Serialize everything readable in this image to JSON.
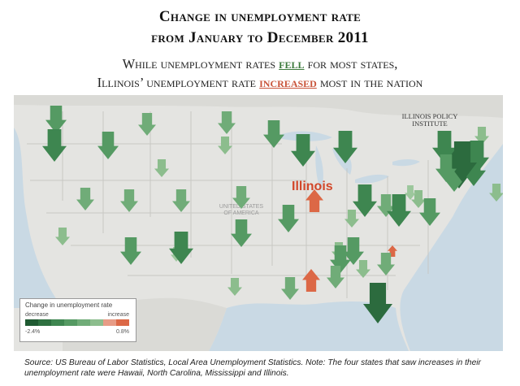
{
  "title": {
    "line1": "Change in unemployment rate",
    "line2": "from January to December 2011"
  },
  "subtitle": {
    "line1_pre": "While unemployment rates ",
    "line1_emph": "fell",
    "line1_post": " for most states,",
    "line2_pre": "Illinois’ unemployment rate ",
    "line2_emph": "increased",
    "line2_post": " most in the nation"
  },
  "map": {
    "highlight_label": "Illinois",
    "country_label_line1": "UNITED STATES",
    "country_label_line2": "OF AMERICA",
    "logo_line1": "ILLINOIS POLICY",
    "logo_line2": "INSTITUTE",
    "colors": {
      "land": "#e4e4e1",
      "water": "#c9d9e4",
      "border": "#c8c8c4",
      "decrease_dark": "#2c6b3e",
      "increase": "#dc6846"
    },
    "arrows": [
      {
        "state": "WA-coast",
        "dir": "down",
        "level": 3
      },
      {
        "state": "WA",
        "dir": "down",
        "level": 2
      },
      {
        "state": "OR",
        "dir": "down",
        "level": 1
      },
      {
        "state": "ID-N",
        "dir": "down",
        "level": 2
      },
      {
        "state": "MT",
        "dir": "down",
        "level": 3
      },
      {
        "state": "ND",
        "dir": "down",
        "level": 3
      },
      {
        "state": "MN",
        "dir": "down",
        "level": 1
      },
      {
        "state": "SD",
        "dir": "down",
        "level": 4
      },
      {
        "state": "WY",
        "dir": "down",
        "level": 4
      },
      {
        "state": "ID",
        "dir": "down",
        "level": 2
      },
      {
        "state": "NV",
        "dir": "down",
        "level": 2
      },
      {
        "state": "UT",
        "dir": "down",
        "level": 2
      },
      {
        "state": "CO",
        "dir": "down",
        "level": 2
      },
      {
        "state": "NE",
        "dir": "down",
        "level": 4
      },
      {
        "state": "IA",
        "dir": "down",
        "level": 4
      },
      {
        "state": "WI",
        "dir": "down",
        "level": 5
      },
      {
        "state": "MI",
        "dir": "down",
        "level": 1
      },
      {
        "state": "CA",
        "dir": "down",
        "level": 1
      },
      {
        "state": "AZ",
        "dir": "down",
        "level": 3
      },
      {
        "state": "NM",
        "dir": "down",
        "level": 0
      },
      {
        "state": "KS",
        "dir": "down",
        "level": 3
      },
      {
        "state": "MO",
        "dir": "down",
        "level": 1
      },
      {
        "state": "IL",
        "dir": "up",
        "level": -2
      },
      {
        "state": "IN",
        "dir": "down",
        "level": 1
      },
      {
        "state": "OH",
        "dir": "down",
        "level": 2
      },
      {
        "state": "KY",
        "dir": "down",
        "level": 1
      },
      {
        "state": "WV",
        "dir": "down",
        "level": 0
      },
      {
        "state": "VA",
        "dir": "down",
        "level": 3
      },
      {
        "state": "PA",
        "dir": "down",
        "level": 3
      },
      {
        "state": "NY",
        "dir": "down",
        "level": 4
      },
      {
        "state": "VT",
        "dir": "down",
        "level": 4
      },
      {
        "state": "NH",
        "dir": "down",
        "level": 4
      },
      {
        "state": "ME",
        "dir": "down",
        "level": 5
      },
      {
        "state": "MA",
        "dir": "down",
        "level": 1
      },
      {
        "state": "NJ",
        "dir": "down",
        "level": 3
      },
      {
        "state": "DE",
        "dir": "down",
        "level": 4
      },
      {
        "state": "OK",
        "dir": "down",
        "level": 3
      },
      {
        "state": "TX",
        "dir": "down",
        "level": 4
      },
      {
        "state": "AR",
        "dir": "down",
        "level": 3
      },
      {
        "state": "TN",
        "dir": "down",
        "level": 1
      },
      {
        "state": "NC",
        "dir": "up",
        "level": -1
      },
      {
        "state": "SC",
        "dir": "down",
        "level": 2
      },
      {
        "state": "GA",
        "dir": "down",
        "level": 2
      },
      {
        "state": "AL",
        "dir": "down",
        "level": 3
      },
      {
        "state": "MS",
        "dir": "up",
        "level": -2
      },
      {
        "state": "LA",
        "dir": "down",
        "level": 2
      },
      {
        "state": "FL",
        "dir": "down",
        "level": 5
      },
      {
        "state": "TX-S",
        "dir": "down",
        "level": 1
      }
    ]
  },
  "legend": {
    "title": "Change in unemployment rate",
    "decrease_label": "decrease",
    "increase_label": "increase",
    "min_label": "-2.4%",
    "max_label": "0.8%",
    "colors": [
      "#1f5a32",
      "#2e7040",
      "#3e8650",
      "#559a63",
      "#70ac78",
      "#8cbd8d",
      "#e79c86",
      "#dc6846"
    ]
  },
  "source": "Source: US Bureau of Labor Statistics, Local Area Unemployment Statistics. Note: The four states that saw increases in their unemployment rate were Hawaii, North Carolina, Mississippi and Illinois."
}
